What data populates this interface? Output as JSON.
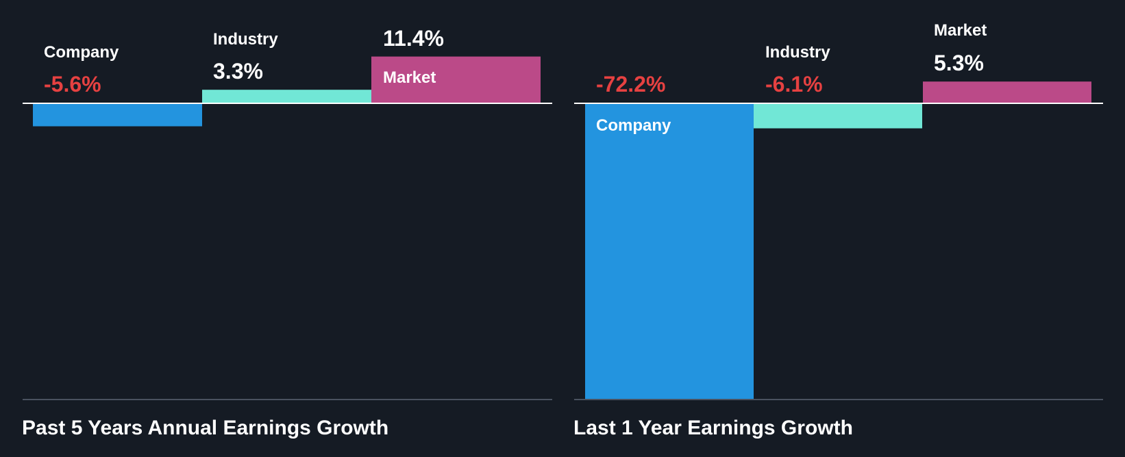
{
  "colors": {
    "background": "#151b24",
    "company": "#2394df",
    "industry": "#71e7d6",
    "market": "#bb4a88",
    "negative_text": "#e64141",
    "positive_text": "#ffffff",
    "label_text": "#ffffff",
    "baseline": "#ffffff",
    "footer_line": "#4a5260"
  },
  "chart_data": [
    {
      "type": "bar",
      "title": "Past 5 Years Annual Earnings Growth",
      "categories": [
        "Company",
        "Industry",
        "Market"
      ],
      "values": [
        -5.6,
        3.3,
        11.4
      ],
      "value_labels": [
        "-5.6%",
        "3.3%",
        "11.4%"
      ],
      "unit": "%",
      "ylim": [
        -76,
        11.4
      ]
    },
    {
      "type": "bar",
      "title": "Last 1 Year Earnings Growth",
      "categories": [
        "Company",
        "Industry",
        "Market"
      ],
      "values": [
        -72.2,
        -6.1,
        5.3
      ],
      "value_labels": [
        "-72.2%",
        "-6.1%",
        "5.3%"
      ],
      "unit": "%",
      "ylim": [
        -72.2,
        11.4
      ]
    }
  ]
}
